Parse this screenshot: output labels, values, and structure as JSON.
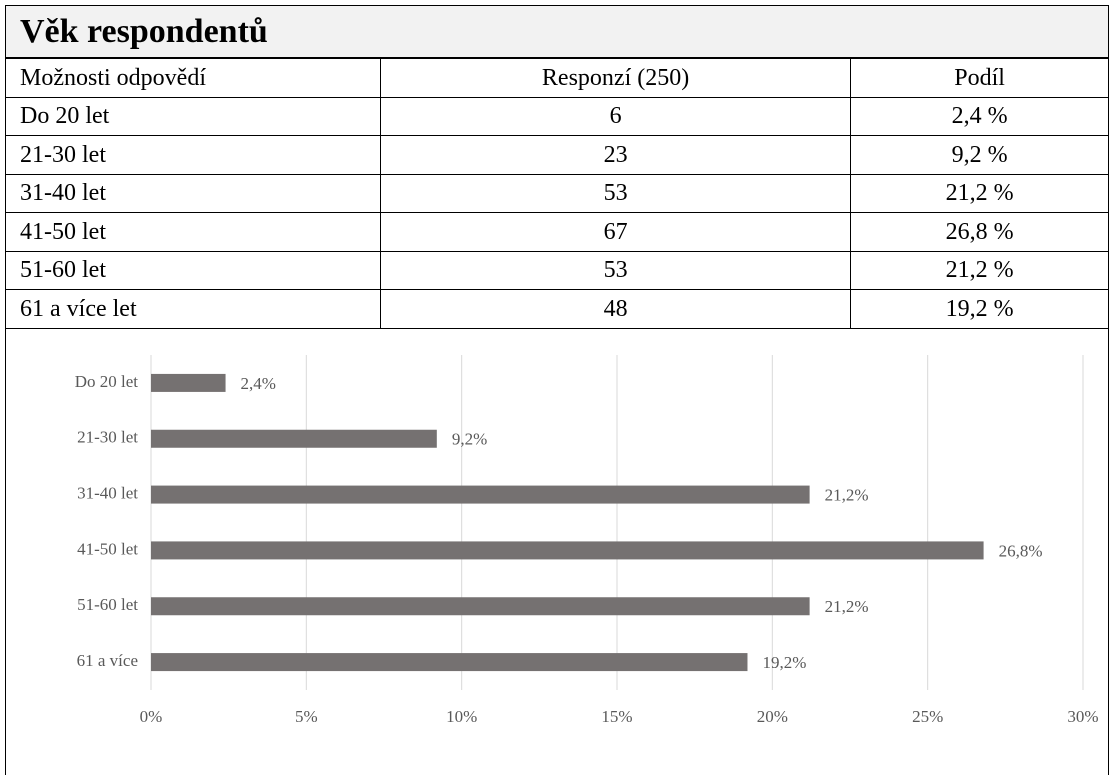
{
  "table": {
    "title": "Věk respondentů",
    "header": [
      "Možnosti odpovědí",
      "Responzí (250)",
      "Podíl"
    ],
    "rows": [
      [
        "Do 20 let",
        6,
        "2,4 %"
      ],
      [
        "21-30 let",
        23,
        "9,2 %"
      ],
      [
        "31-40 let",
        53,
        "21,2 %"
      ],
      [
        "41-50 let",
        67,
        "26,8 %"
      ],
      [
        "51-60 let",
        53,
        "21,2 %"
      ],
      [
        "61 a více let",
        48,
        "19,2 %"
      ]
    ]
  },
  "chart_data": {
    "type": "bar",
    "orientation": "horizontal",
    "categories": [
      "Do 20 let",
      "21-30 let",
      "31-40 let",
      "41-50 let",
      "51-60 let",
      "61 a více"
    ],
    "values": [
      2.4,
      9.2,
      21.2,
      26.8,
      21.2,
      19.2
    ],
    "value_labels": [
      "2,4%",
      "9,2%",
      "21,2%",
      "26,8%",
      "21,2%",
      "19,2%"
    ],
    "color": "#757171",
    "xlim": [
      0,
      30
    ],
    "xticks": [
      {
        "value": 0,
        "label": "0%"
      },
      {
        "value": 5,
        "label": "5%"
      },
      {
        "value": 10,
        "label": "10%"
      },
      {
        "value": 15,
        "label": "15%"
      },
      {
        "value": 20,
        "label": "20%"
      },
      {
        "value": 25,
        "label": "25%"
      },
      {
        "value": 30,
        "label": "30%"
      }
    ],
    "grid": true
  }
}
